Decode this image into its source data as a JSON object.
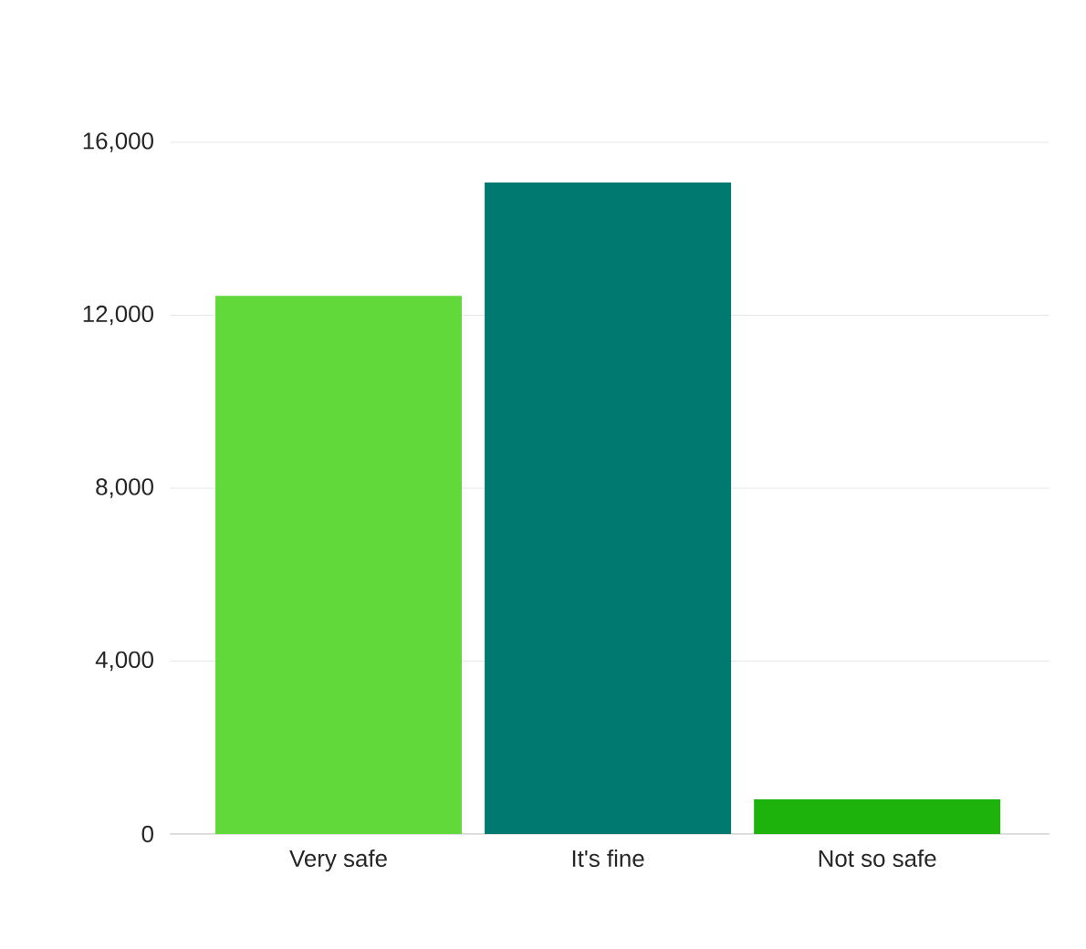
{
  "chart_data": {
    "type": "bar",
    "categories": [
      "Very safe",
      "It's fine",
      "Not so safe"
    ],
    "values": [
      12450,
      15070,
      800
    ],
    "colors": [
      "#62d93a",
      "#007a70",
      "#1db30c"
    ],
    "ylim": [
      0,
      16000
    ],
    "yticks": [
      0,
      {
        "value": 4000,
        "label": "4,000"
      },
      {
        "value": 8000,
        "label": "8,000"
      },
      {
        "value": 12000,
        "label": "12,000"
      },
      {
        "value": 16000,
        "label": "16,000"
      }
    ],
    "grid": "y"
  }
}
